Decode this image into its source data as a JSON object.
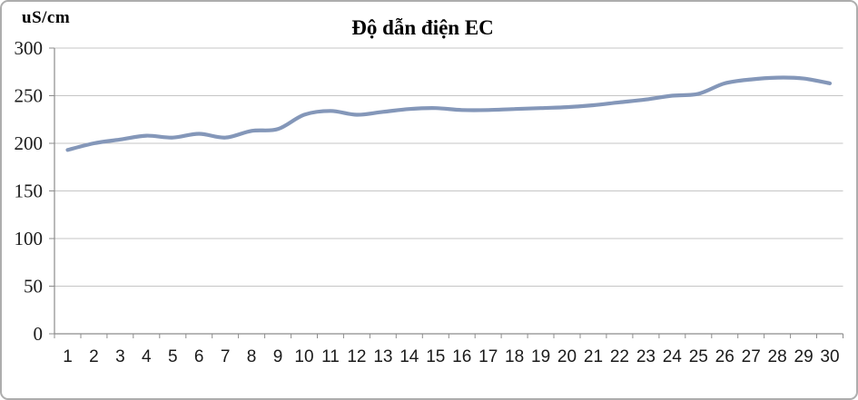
{
  "chart": {
    "y_unit_label": "uS/cm",
    "colors": {
      "line": "#8497B9",
      "gridline": "#C6C6C6",
      "axis": "#8C8C8C",
      "tick": "#8C8C8C",
      "label_text": "#1A1A1A",
      "border": "#ADADAD",
      "background": "#FFFFFF"
    }
  },
  "chart_data": {
    "type": "line",
    "title": "Độ dẫn điện EC",
    "ylabel": "uS/cm",
    "xlabel": "",
    "x": [
      1,
      2,
      3,
      4,
      5,
      6,
      7,
      8,
      9,
      10,
      11,
      12,
      13,
      14,
      15,
      16,
      17,
      18,
      19,
      20,
      21,
      22,
      23,
      24,
      25,
      26,
      27,
      28,
      29,
      30
    ],
    "values": [
      193,
      200,
      204,
      208,
      206,
      210,
      206,
      213,
      215,
      230,
      234,
      230,
      233,
      236,
      237,
      235,
      235,
      236,
      237,
      238,
      240,
      243,
      246,
      250,
      252,
      263,
      267,
      269,
      268,
      263
    ],
    "ylim": [
      0,
      300
    ],
    "y_ticks": [
      0,
      50,
      100,
      150,
      200,
      250,
      300
    ],
    "grid": "horizontal-only",
    "legend": "none",
    "line_style": "smoothed"
  }
}
